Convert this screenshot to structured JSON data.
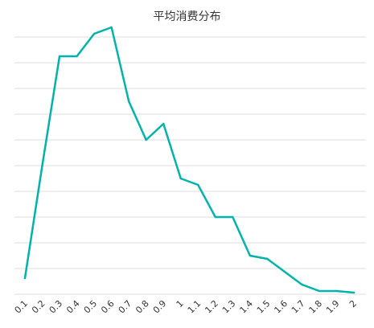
{
  "chart_data": {
    "type": "line",
    "title": "平均消费分布",
    "xlabel": "",
    "ylabel": "",
    "categories": [
      "0.1",
      "0.2",
      "0.3",
      "0.4",
      "0.5",
      "0.6",
      "0.7",
      "0.8",
      "0.9",
      "1",
      "1.1",
      "1.2",
      "1.3",
      "1.4",
      "1.5",
      "1.6",
      "1.7",
      "1.8",
      "1.9",
      "2"
    ],
    "series": [
      {
        "values": [
          5,
          40,
          74,
          74,
          81,
          83,
          60,
          48,
          53,
          36,
          34,
          24,
          24,
          12,
          11,
          7,
          3,
          1,
          1,
          0.5
        ]
      }
    ],
    "ylim": [
      0,
      80
    ],
    "y_grid_step": 8,
    "y_tick_labels_visible": false,
    "grid": "horizontal",
    "line_color": "#00b2a9",
    "grid_color": "#dddddd"
  }
}
